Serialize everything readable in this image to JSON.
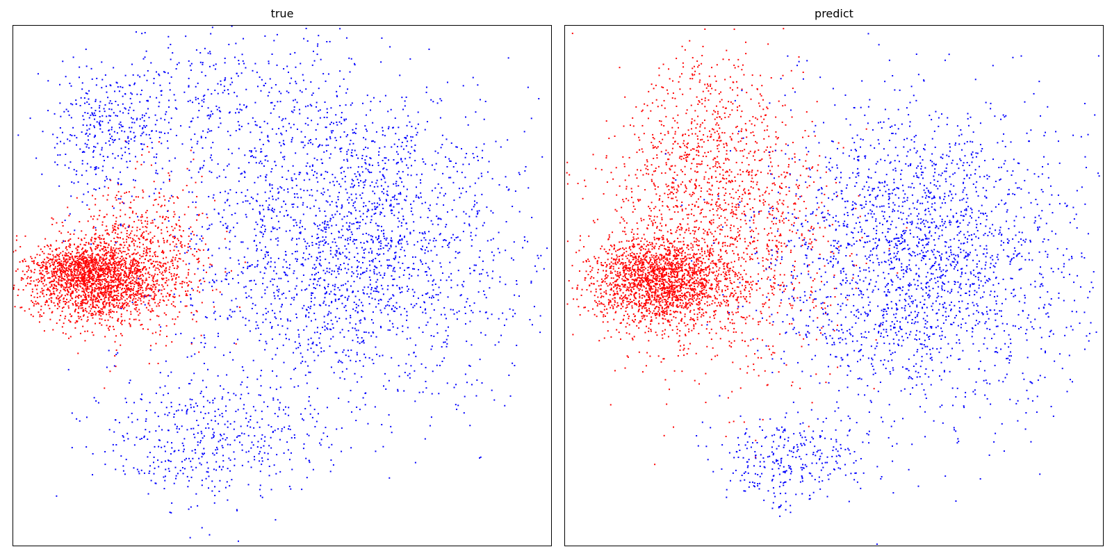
{
  "chart_data": [
    {
      "type": "scatter",
      "title": "true",
      "xlim": [
        -46,
        46
      ],
      "ylim": [
        -48,
        48
      ],
      "grid": false,
      "ticks": false,
      "colors": {
        "class_a": "#ff0000",
        "class_b": "#0000ff"
      },
      "series": [
        {
          "color": "#ff0000",
          "clusters": [
            {
              "center": [
                -32,
                1
              ],
              "spread": [
                6,
                4
              ],
              "count": 1700
            },
            {
              "center": [
                -35,
                3
              ],
              "spread": [
                4,
                2
              ],
              "count": 400
            },
            {
              "center": [
                -24,
                5
              ],
              "spread": [
                6,
                7
              ],
              "count": 700
            }
          ]
        },
        {
          "color": "#0000ff",
          "clusters": [
            {
              "center": [
                12,
                8
              ],
              "spread": [
                14,
                14
              ],
              "count": 2300
            },
            {
              "center": [
                -30,
                28
              ],
              "spread": [
                5,
                7
              ],
              "count": 350
            },
            {
              "center": [
                -12,
                -28
              ],
              "spread": [
                10,
                6
              ],
              "count": 500
            },
            {
              "center": [
                -10,
                35
              ],
              "spread": [
                10,
                6
              ],
              "count": 300
            }
          ]
        }
      ]
    },
    {
      "type": "scatter",
      "title": "predict",
      "xlim": [
        -46,
        46
      ],
      "ylim": [
        -48,
        48
      ],
      "grid": false,
      "ticks": false,
      "colors": {
        "class_a": "#ff0000",
        "class_b": "#0000ff"
      },
      "series": [
        {
          "color": "#ff0000",
          "clusters": [
            {
              "center": [
                -30,
                1
              ],
              "spread": [
                6,
                4
              ],
              "count": 1800
            },
            {
              "center": [
                -20,
                8
              ],
              "spread": [
                10,
                12
              ],
              "count": 1500
            },
            {
              "center": [
                -22,
                28
              ],
              "spread": [
                7,
                8
              ],
              "count": 400
            }
          ]
        },
        {
          "color": "#0000ff",
          "clusters": [
            {
              "center": [
                15,
                5
              ],
              "spread": [
                13,
                14
              ],
              "count": 2300
            },
            {
              "center": [
                -7,
                -32
              ],
              "spread": [
                6,
                4
              ],
              "count": 300
            }
          ]
        }
      ]
    }
  ]
}
